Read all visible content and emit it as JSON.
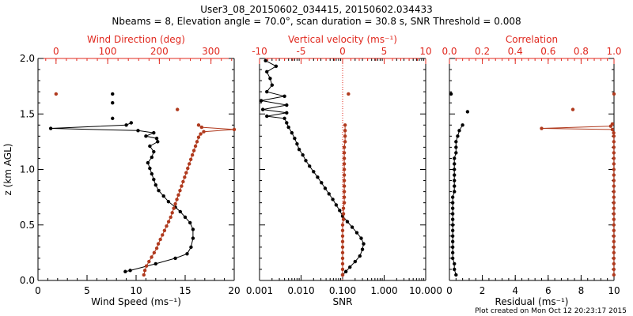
{
  "title_line1": "User3_08_20150602_034415, 20150602.034433",
  "title_line2": "Nbeams = 8, Elevation angle = 70.0°, scan duration = 30.8 s, SNR Threshold = 0.008",
  "footer": "Plot created on Mon Oct 12 20:23:17 2015",
  "colors": {
    "black_series": "#000000",
    "red_series": "#b03a1e",
    "red_axis": "#e0281e"
  },
  "chart_data": [
    {
      "type": "line",
      "ylabel": "z (km AGL)",
      "ylim": [
        0,
        2.0
      ],
      "y_ticks": [
        "0.0",
        "0.5",
        "1.0",
        "1.5",
        "2.0"
      ],
      "bottom_axis": {
        "label": "Wind Speed (ms⁻¹)",
        "range": [
          0,
          20
        ],
        "ticks": [
          "0",
          "5",
          "10",
          "15",
          "20"
        ]
      },
      "top_axis": {
        "label": "Wind Direction (deg)",
        "range": [
          -35,
          345
        ],
        "ticks": [
          "0",
          "100",
          "200",
          "300"
        ],
        "tick_values": [
          0,
          100,
          200,
          300
        ]
      },
      "series": [
        {
          "color_key": "black_series",
          "axis": "bottom",
          "points": [
            [
              8.9,
              0.08
            ],
            [
              9.4,
              0.09
            ],
            [
              12,
              0.15
            ],
            [
              14,
              0.2
            ],
            [
              15.2,
              0.24
            ],
            [
              15.6,
              0.3
            ],
            [
              15.8,
              0.38
            ],
            [
              15.8,
              0.46
            ],
            [
              15.5,
              0.52
            ],
            [
              15.0,
              0.57
            ],
            [
              14.5,
              0.62
            ],
            [
              14.0,
              0.66
            ],
            [
              13.3,
              0.71
            ],
            [
              12.8,
              0.76
            ],
            [
              12.3,
              0.81
            ],
            [
              12.0,
              0.86
            ],
            [
              11.8,
              0.91
            ],
            [
              11.6,
              0.96
            ],
            [
              11.4,
              1.01
            ],
            [
              11.2,
              1.06
            ],
            [
              11.6,
              1.11
            ],
            [
              11.8,
              1.16
            ],
            [
              11.4,
              1.21
            ],
            [
              12.2,
              1.25
            ],
            [
              12.1,
              1.28
            ],
            [
              11.0,
              1.3
            ],
            [
              11.8,
              1.33
            ],
            [
              10.2,
              1.35
            ],
            [
              1.3,
              1.37
            ],
            [
              9.0,
              1.4
            ],
            [
              9.5,
              1.42
            ]
          ],
          "isolated": [
            [
              7.6,
              1.68
            ],
            [
              7.6,
              1.6
            ],
            [
              7.6,
              1.46
            ]
          ]
        },
        {
          "color_key": "red_series",
          "axis": "top",
          "points": [
            [
              170,
              0.05
            ],
            [
              172,
              0.09
            ],
            [
              175,
              0.13
            ],
            [
              180,
              0.17
            ],
            [
              185,
              0.21
            ],
            [
              190,
              0.25
            ],
            [
              195,
              0.29
            ],
            [
              198,
              0.33
            ],
            [
              202,
              0.37
            ],
            [
              206,
              0.41
            ],
            [
              210,
              0.45
            ],
            [
              214,
              0.49
            ],
            [
              218,
              0.53
            ],
            [
              222,
              0.57
            ],
            [
              225,
              0.61
            ],
            [
              228,
              0.65
            ],
            [
              231,
              0.69
            ],
            [
              234,
              0.73
            ],
            [
              237,
              0.77
            ],
            [
              240,
              0.81
            ],
            [
              243,
              0.85
            ],
            [
              246,
              0.89
            ],
            [
              249,
              0.93
            ],
            [
              252,
              0.97
            ],
            [
              255,
              1.01
            ],
            [
              258,
              1.05
            ],
            [
              261,
              1.09
            ],
            [
              264,
              1.13
            ],
            [
              267,
              1.17
            ],
            [
              270,
              1.21
            ],
            [
              273,
              1.25
            ],
            [
              276,
              1.29
            ],
            [
              280,
              1.32
            ],
            [
              286,
              1.34
            ],
            [
              345,
              1.36
            ],
            [
              282,
              1.38
            ],
            [
              276,
              1.4
            ]
          ],
          "isolated": [
            [
              0,
              1.68
            ],
            [
              235,
              1.54
            ]
          ]
        }
      ]
    },
    {
      "type": "line",
      "ylim": [
        0,
        2.0
      ],
      "bottom_axis": {
        "label": "SNR",
        "scale": "log",
        "range": [
          0.001,
          10
        ],
        "ticks": [
          "0.001",
          "0.010",
          "0.100",
          "1.000",
          "10.000"
        ],
        "tick_values": [
          0.001,
          0.01,
          0.1,
          1,
          10
        ]
      },
      "top_axis": {
        "label": "Vertical velocity (ms⁻¹)",
        "range": [
          -10,
          10
        ],
        "ticks": [
          "-10",
          "-5",
          "0",
          "5",
          "10"
        ],
        "tick_values": [
          -10,
          -5,
          0,
          5,
          10
        ]
      },
      "zero_line": 0,
      "series": [
        {
          "color_key": "black_series",
          "axis": "bottom",
          "points": [
            [
              0.1,
              0.05
            ],
            [
              0.12,
              0.08
            ],
            [
              0.15,
              0.12
            ],
            [
              0.2,
              0.17
            ],
            [
              0.26,
              0.22
            ],
            [
              0.3,
              0.28
            ],
            [
              0.32,
              0.33
            ],
            [
              0.28,
              0.38
            ],
            [
              0.22,
              0.43
            ],
            [
              0.17,
              0.48
            ],
            [
              0.13,
              0.53
            ],
            [
              0.1,
              0.58
            ],
            [
              0.085,
              0.63
            ],
            [
              0.07,
              0.68
            ],
            [
              0.058,
              0.73
            ],
            [
              0.047,
              0.78
            ],
            [
              0.038,
              0.83
            ],
            [
              0.031,
              0.88
            ],
            [
              0.025,
              0.93
            ],
            [
              0.02,
              0.98
            ],
            [
              0.016,
              1.03
            ],
            [
              0.013,
              1.08
            ],
            [
              0.011,
              1.13
            ],
            [
              0.009,
              1.18
            ],
            [
              0.008,
              1.23
            ],
            [
              0.007,
              1.28
            ],
            [
              0.006,
              1.33
            ],
            [
              0.005,
              1.38
            ],
            [
              0.0045,
              1.42
            ],
            [
              0.004,
              1.46
            ],
            [
              0.0015,
              1.48
            ],
            [
              0.0045,
              1.51
            ],
            [
              0.0012,
              1.54
            ],
            [
              0.0045,
              1.58
            ],
            [
              0.0011,
              1.62
            ],
            [
              0.004,
              1.66
            ],
            [
              0.0015,
              1.7
            ],
            [
              0.002,
              1.76
            ],
            [
              0.0018,
              1.82
            ],
            [
              0.0015,
              1.88
            ],
            [
              0.0025,
              1.93
            ],
            [
              0.0014,
              1.98
            ]
          ]
        },
        {
          "color_key": "red_series",
          "axis": "top",
          "points": [
            [
              0.0,
              0.05
            ],
            [
              0.0,
              0.1
            ],
            [
              0.0,
              0.15
            ],
            [
              0.0,
              0.2
            ],
            [
              0.0,
              0.25
            ],
            [
              0.0,
              0.3
            ],
            [
              0.0,
              0.35
            ],
            [
              0.0,
              0.4
            ],
            [
              0.0,
              0.45
            ],
            [
              0.0,
              0.5
            ],
            [
              0.1,
              0.55
            ],
            [
              0.1,
              0.6
            ],
            [
              0.1,
              0.65
            ],
            [
              0.2,
              0.7
            ],
            [
              0.2,
              0.75
            ],
            [
              0.2,
              0.8
            ],
            [
              0.2,
              0.85
            ],
            [
              0.2,
              0.9
            ],
            [
              0.2,
              0.95
            ],
            [
              0.2,
              1.0
            ],
            [
              0.2,
              1.05
            ],
            [
              0.2,
              1.1
            ],
            [
              0.2,
              1.15
            ],
            [
              0.2,
              1.2
            ],
            [
              0.3,
              1.25
            ],
            [
              0.3,
              1.3
            ],
            [
              0.3,
              1.35
            ],
            [
              0.3,
              1.4
            ]
          ],
          "isolated": [
            [
              0.7,
              1.68
            ]
          ]
        }
      ]
    },
    {
      "type": "line",
      "ylim": [
        0,
        2.0
      ],
      "bottom_axis": {
        "label": "Residual (ms⁻¹)",
        "range": [
          0,
          10
        ],
        "ticks": [
          "0",
          "2",
          "4",
          "6",
          "8",
          "10"
        ],
        "tick_values": [
          0,
          2,
          4,
          6,
          8,
          10
        ]
      },
      "top_axis": {
        "label": "Correlation",
        "range": [
          0,
          1.0
        ],
        "ticks": [
          "0.0",
          "0.2",
          "0.4",
          "0.6",
          "0.8",
          "1.0"
        ],
        "tick_values": [
          0,
          0.2,
          0.4,
          0.6,
          0.8,
          1.0
        ]
      },
      "series": [
        {
          "color_key": "black_series",
          "axis": "bottom",
          "points": [
            [
              0.4,
              0.05
            ],
            [
              0.3,
              0.1
            ],
            [
              0.3,
              0.15
            ],
            [
              0.2,
              0.2
            ],
            [
              0.2,
              0.25
            ],
            [
              0.2,
              0.3
            ],
            [
              0.2,
              0.35
            ],
            [
              0.2,
              0.4
            ],
            [
              0.2,
              0.45
            ],
            [
              0.2,
              0.5
            ],
            [
              0.2,
              0.55
            ],
            [
              0.2,
              0.6
            ],
            [
              0.2,
              0.65
            ],
            [
              0.2,
              0.7
            ],
            [
              0.2,
              0.75
            ],
            [
              0.3,
              0.8
            ],
            [
              0.3,
              0.85
            ],
            [
              0.3,
              0.9
            ],
            [
              0.3,
              0.95
            ],
            [
              0.3,
              1.0
            ],
            [
              0.3,
              1.05
            ],
            [
              0.3,
              1.1
            ],
            [
              0.4,
              1.15
            ],
            [
              0.4,
              1.2
            ],
            [
              0.4,
              1.25
            ],
            [
              0.5,
              1.3
            ],
            [
              0.6,
              1.35
            ],
            [
              0.8,
              1.4
            ]
          ],
          "isolated": [
            [
              1.1,
              1.52
            ],
            [
              0.1,
              1.68
            ]
          ]
        },
        {
          "color_key": "red_series",
          "axis": "top",
          "points": [
            [
              0.999,
              0.05
            ],
            [
              0.999,
              0.1
            ],
            [
              0.999,
              0.15
            ],
            [
              0.999,
              0.2
            ],
            [
              0.999,
              0.25
            ],
            [
              0.999,
              0.3
            ],
            [
              0.999,
              0.35
            ],
            [
              0.999,
              0.4
            ],
            [
              0.999,
              0.45
            ],
            [
              0.999,
              0.5
            ],
            [
              0.999,
              0.55
            ],
            [
              0.999,
              0.6
            ],
            [
              0.999,
              0.65
            ],
            [
              0.999,
              0.7
            ],
            [
              0.999,
              0.75
            ],
            [
              0.999,
              0.8
            ],
            [
              0.999,
              0.85
            ],
            [
              0.999,
              0.9
            ],
            [
              0.999,
              0.95
            ],
            [
              0.999,
              1.0
            ],
            [
              0.999,
              1.05
            ],
            [
              0.999,
              1.1
            ],
            [
              0.999,
              1.15
            ],
            [
              0.999,
              1.2
            ],
            [
              0.999,
              1.25
            ],
            [
              0.999,
              1.3
            ],
            [
              0.998,
              1.33
            ],
            [
              0.99,
              1.36
            ],
            [
              0.56,
              1.37
            ],
            [
              0.98,
              1.39
            ],
            [
              0.99,
              1.41
            ]
          ],
          "isolated": [
            [
              0.75,
              1.54
            ],
            [
              1.0,
              1.68
            ]
          ]
        }
      ]
    }
  ]
}
